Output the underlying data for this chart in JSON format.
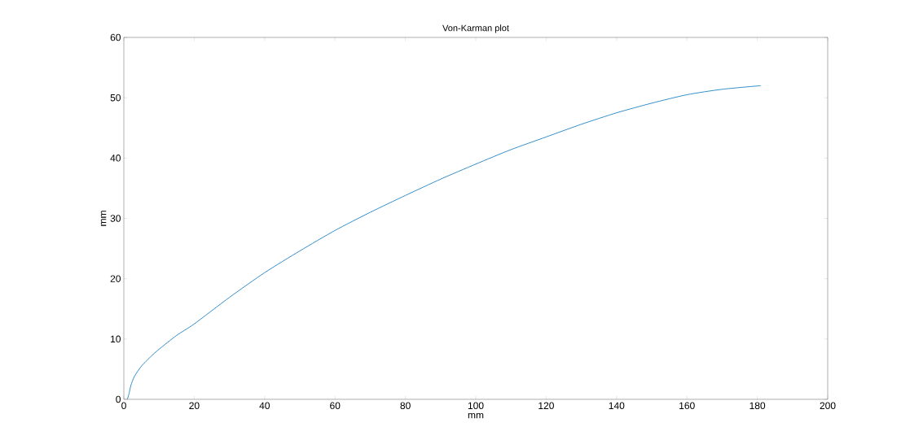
{
  "chart_data": {
    "type": "line",
    "title": "Von-Karman plot",
    "xlabel": "mm",
    "ylabel": "mm",
    "x": [
      1,
      1.5,
      2,
      3,
      5,
      7.5,
      10,
      15,
      20,
      30,
      40,
      50,
      60,
      70,
      80,
      90,
      100,
      110,
      120,
      130,
      140,
      150,
      160,
      170,
      181
    ],
    "series": [
      {
        "color": "#0072bd",
        "values": [
          0,
          1,
          2.3,
          3.8,
          5.5,
          7,
          8.3,
          10.6,
          12.5,
          16.9,
          21,
          24.6,
          28,
          31,
          33.8,
          36.5,
          39,
          41.4,
          43.5,
          45.6,
          47.5,
          49.1,
          50.5,
          51.4,
          52
        ]
      }
    ],
    "xlim": [
      0,
      200
    ],
    "ylim": [
      0,
      60
    ],
    "xticks": [
      0,
      20,
      40,
      60,
      80,
      100,
      120,
      140,
      160,
      180,
      200
    ],
    "yticks": [
      0,
      10,
      20,
      30,
      40,
      50,
      60
    ],
    "marker": "none",
    "line_style": "solid"
  }
}
